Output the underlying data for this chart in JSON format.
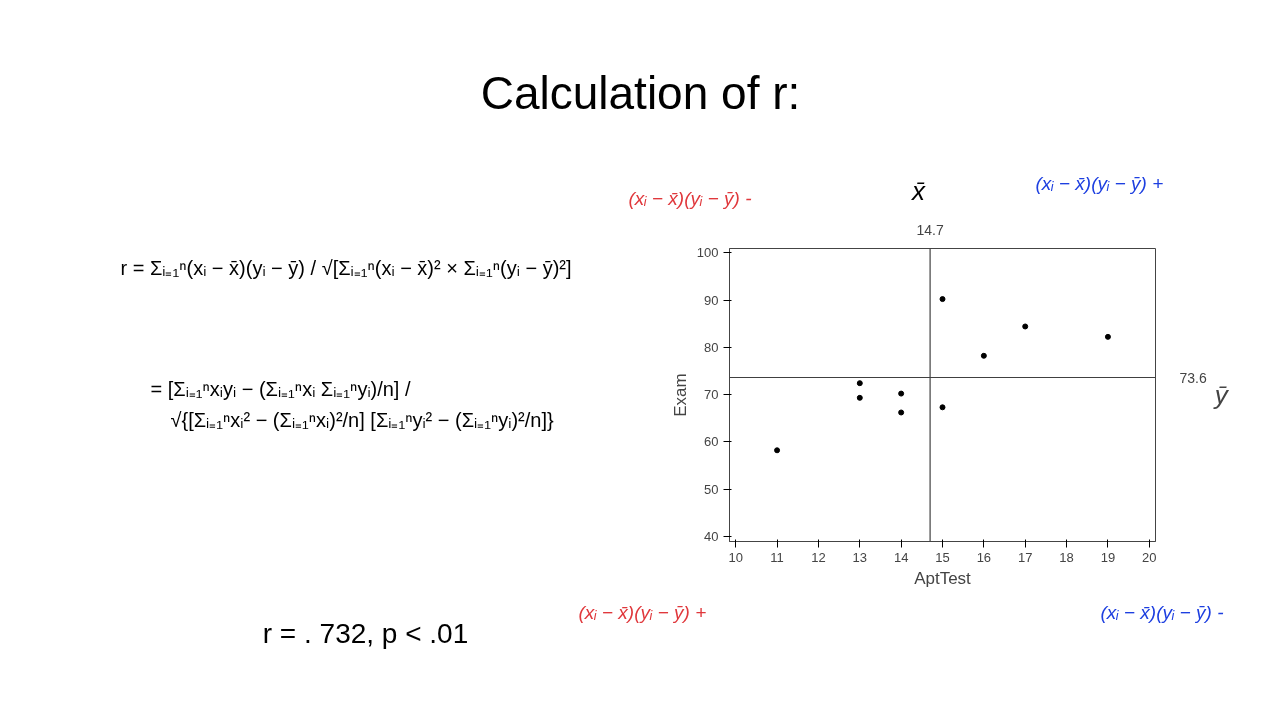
{
  "chart_data": {
    "type": "scatter",
    "title": "Calculation of r:",
    "xlabel": "AptTest",
    "ylabel": "Exam",
    "x": [
      11,
      13,
      13,
      14,
      14,
      15,
      15,
      16,
      17,
      19
    ],
    "series": [
      {
        "color": "#000000",
        "values": [
          58.2,
          72.4,
          69.3,
          70.2,
          66.2,
          67.3,
          90.2,
          78.2,
          84.4,
          82.2
        ]
      }
    ],
    "xlim": [
      9.85,
      20.15
    ],
    "ylim": [
      38.9,
      100.9
    ],
    "xticks": [
      10,
      11,
      12,
      13,
      14,
      15,
      16,
      17,
      18,
      19,
      20
    ],
    "yticks": [
      40,
      50,
      60,
      70,
      80,
      90,
      100
    ],
    "grid": false,
    "marker": "circle",
    "ref_lines": [
      {
        "axis": "x",
        "value": 14.7,
        "label": "14.7",
        "color": "#404040"
      },
      {
        "axis": "y",
        "value": 73.6,
        "label": "73.6",
        "color": "#404040"
      }
    ],
    "annotations": [
      "r = Σᵢ₌₁ⁿ(xᵢ − x̄)(yᵢ − ȳ) / √[Σᵢ₌₁ⁿ(xᵢ − x̄)² × Σᵢ₌₁ⁿ(yᵢ − ȳ)²]",
      "= [Σᵢ₌₁ⁿxᵢyᵢ − (Σᵢ₌₁ⁿxᵢ Σᵢ₌₁ⁿyᵢ)/n] /",
      "√{[Σᵢ₌₁ⁿxᵢ² − (Σᵢ₌₁ⁿxᵢ)²/n] [Σᵢ₌₁ⁿyᵢ² − (Σᵢ₌₁ⁿyᵢ)²/n]}",
      "r = . 732, p < .01",
      "x̄",
      "ȳ",
      "(xᵢ − x̄)(yᵢ − ȳ)  -",
      "(xᵢ − x̄)(yᵢ − ȳ)  +",
      "(xᵢ − x̄)(yᵢ − ȳ)  +",
      "(xᵢ − x̄)(yᵢ − ȳ)  -"
    ]
  }
}
